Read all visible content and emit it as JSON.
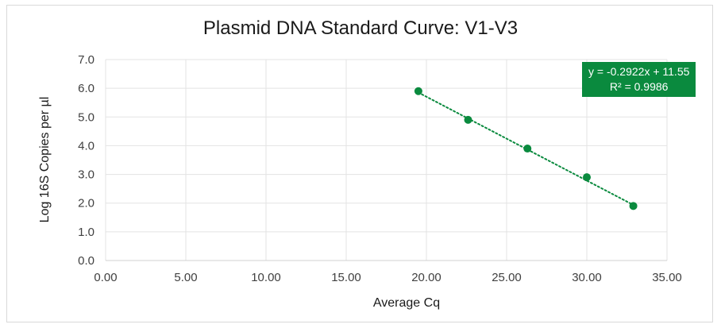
{
  "chart_data": {
    "type": "scatter",
    "title": "Plasmid DNA Standard Curve: V1-V3",
    "xlabel": "Average Cq",
    "ylabel": "Log 16S Copies per µl",
    "xlim": [
      0,
      35
    ],
    "ylim": [
      0,
      7
    ],
    "x_ticks": [
      "0.00",
      "5.00",
      "10.00",
      "15.00",
      "20.00",
      "25.00",
      "30.00",
      "35.00"
    ],
    "y_ticks": [
      "0.0",
      "1.0",
      "2.0",
      "3.0",
      "4.0",
      "5.0",
      "6.0",
      "7.0"
    ],
    "grid": true,
    "legend": "none",
    "series": [
      {
        "points": [
          {
            "x": 19.5,
            "y": 5.9
          },
          {
            "x": 22.6,
            "y": 4.9
          },
          {
            "x": 26.3,
            "y": 3.9
          },
          {
            "x": 30.0,
            "y": 2.9
          },
          {
            "x": 32.9,
            "y": 1.9
          }
        ],
        "color": "#0a8a3e"
      }
    ],
    "trendline": {
      "type": "linear",
      "slope": -0.2922,
      "intercept": 11.55,
      "style": "dotted",
      "color": "#0a8a3e",
      "equation": "y = -0.2922x + 11.55",
      "r_squared": "R² = 0.9986"
    }
  }
}
